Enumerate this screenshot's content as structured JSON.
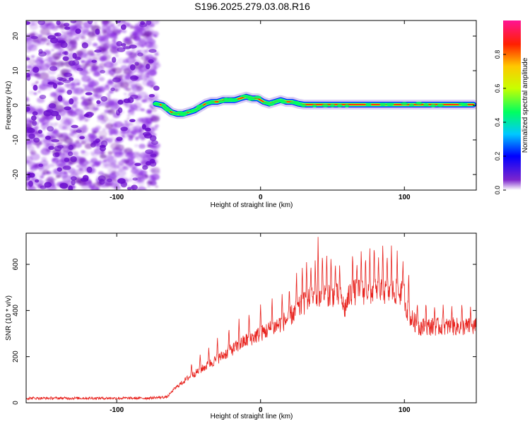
{
  "title": "S196.2025.279.03.08.R16",
  "chart_data": [
    {
      "type": "heatmap",
      "name": "spectrogram",
      "xlabel": "Height of straight line (km)",
      "ylabel": "Frequency (Hz)",
      "xlim": [
        -163,
        150
      ],
      "ylim": [
        -24.5,
        24.5
      ],
      "xticks": [
        -100,
        0,
        100
      ],
      "yticks": [
        -20,
        -10,
        0,
        10,
        20
      ],
      "noise_region_x": [
        -163,
        -72
      ],
      "signal_trace": {
        "x": [
          -73,
          -68,
          -65,
          -62,
          -58,
          -54,
          -50,
          -46,
          -42,
          -38,
          -34,
          -30,
          -26,
          -22,
          -18,
          -14,
          -10,
          -6,
          -2,
          2,
          6,
          10,
          14,
          18,
          22,
          26,
          30,
          40,
          60,
          80,
          100,
          120,
          140,
          148
        ],
        "y": [
          0.5,
          0.0,
          -1.0,
          -2.0,
          -2.5,
          -2.5,
          -2.0,
          -1.5,
          -0.5,
          0.5,
          1.0,
          1.0,
          1.5,
          1.5,
          1.5,
          2.0,
          2.5,
          2.0,
          2.0,
          1.0,
          0.5,
          1.0,
          1.5,
          1.0,
          1.0,
          0.5,
          0.2,
          0.2,
          0.2,
          0.2,
          0.2,
          0.2,
          0.2,
          0.2
        ],
        "peak_amplitude": 0.95
      },
      "colorbar": {
        "label": "Normalized spectral amplitude",
        "range": [
          0.0,
          1.0
        ],
        "ticks": [
          0.0,
          0.2,
          0.4,
          0.6,
          0.8
        ]
      }
    },
    {
      "type": "line",
      "name": "snr",
      "xlabel": "Height of straight line (km)",
      "ylabel": "SNR (10 * v/v)",
      "xlim": [
        -163,
        150
      ],
      "ylim": [
        0,
        735
      ],
      "xticks": [
        -100,
        0,
        100
      ],
      "yticks": [
        0,
        200,
        400,
        600
      ],
      "color": "#e8231e",
      "series": {
        "x": [
          -163,
          -140,
          -120,
          -100,
          -80,
          -65,
          -60,
          -50,
          -40,
          -30,
          -20,
          -10,
          0,
          10,
          18,
          25,
          30,
          35,
          40,
          45,
          50,
          55,
          57,
          58,
          60,
          62,
          65,
          70,
          80,
          90,
          95,
          100,
          101,
          104,
          110,
          120,
          130,
          140,
          150
        ],
        "y": [
          20,
          20,
          20,
          20,
          20,
          25,
          60,
          110,
          150,
          190,
          230,
          270,
          300,
          330,
          360,
          400,
          430,
          450,
          460,
          470,
          470,
          460,
          440,
          400,
          430,
          470,
          480,
          480,
          480,
          480,
          480,
          470,
          420,
          370,
          330,
          330,
          330,
          330,
          330
        ]
      },
      "spike_peaks": {
        "x": [
          -48,
          -42,
          -36,
          -30,
          -22,
          -15,
          -8,
          0,
          8,
          15,
          20,
          25,
          29,
          32,
          35,
          38,
          40,
          43,
          46,
          49,
          52,
          55,
          64,
          67,
          70,
          73,
          76,
          79,
          82,
          85,
          88,
          91,
          95,
          99,
          103,
          109,
          115,
          121,
          127,
          133,
          140,
          146
        ],
        "y": [
          175,
          215,
          240,
          285,
          330,
          365,
          395,
          430,
          460,
          480,
          510,
          570,
          600,
          625,
          610,
          620,
          720,
          660,
          650,
          640,
          615,
          600,
          660,
          610,
          670,
          645,
          670,
          700,
          640,
          705,
          650,
          690,
          660,
          620,
          570,
          440,
          445,
          425,
          430,
          420,
          435,
          420
        ]
      }
    }
  ]
}
